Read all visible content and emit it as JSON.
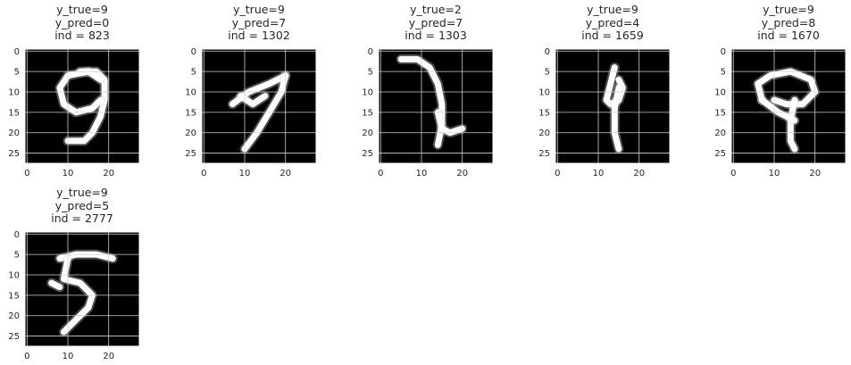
{
  "figure": {
    "panels": [
      {
        "title_lines": [
          "y_true=9",
          "y_pred=0",
          "ind = 823"
        ]
      },
      {
        "title_lines": [
          "y_true=9",
          "y_pred=7",
          "ind = 1302"
        ]
      },
      {
        "title_lines": [
          "y_true=2",
          "y_pred=7",
          "ind = 1303"
        ]
      },
      {
        "title_lines": [
          "y_true=9",
          "y_pred=4",
          "ind = 1659"
        ]
      },
      {
        "title_lines": [
          "y_true=9",
          "y_pred=8",
          "ind = 1670"
        ]
      },
      {
        "title_lines": [
          "y_true=9",
          "y_pred=5",
          "ind = 2777"
        ]
      }
    ]
  },
  "chart_data": [
    {
      "type": "image",
      "title": "y_true=9\ny_pred=0\nind = 823",
      "y_true": 9,
      "y_pred": 0,
      "ind": 823,
      "xlim": [
        -0.5,
        27.5
      ],
      "ylim": [
        27.5,
        -0.5
      ],
      "x_ticks": [
        0,
        10,
        20
      ],
      "y_ticks": [
        0,
        5,
        10,
        15,
        20,
        25
      ],
      "grid": true,
      "colormap": "gray",
      "strokes": [
        [
          [
            13,
            5
          ],
          [
            17,
            5
          ],
          [
            19,
            7
          ],
          [
            19,
            12
          ],
          [
            18,
            16
          ],
          [
            16,
            20
          ],
          [
            14,
            22
          ],
          [
            10,
            22
          ]
        ],
        [
          [
            18,
            7
          ],
          [
            15,
            5
          ],
          [
            10,
            6
          ],
          [
            8,
            9
          ],
          [
            9,
            13
          ],
          [
            12,
            15
          ],
          [
            16,
            14
          ],
          [
            18,
            12
          ]
        ]
      ]
    },
    {
      "type": "image",
      "title": "y_true=9\ny_pred=7\nind = 1302",
      "y_true": 9,
      "y_pred": 7,
      "ind": 1302,
      "xlim": [
        -0.5,
        27.5
      ],
      "ylim": [
        27.5,
        -0.5
      ],
      "x_ticks": [
        0,
        10,
        20
      ],
      "y_ticks": [
        0,
        5,
        10,
        15,
        20,
        25
      ],
      "grid": true,
      "colormap": "gray",
      "strokes": [
        [
          [
            7,
            13
          ],
          [
            11,
            10
          ],
          [
            16,
            8
          ],
          [
            20,
            6
          ]
        ],
        [
          [
            20,
            6
          ],
          [
            19,
            10
          ],
          [
            16,
            15
          ],
          [
            13,
            20
          ],
          [
            10,
            24
          ]
        ],
        [
          [
            9,
            11
          ],
          [
            12,
            13
          ],
          [
            15,
            11
          ]
        ]
      ]
    },
    {
      "type": "image",
      "title": "y_true=2\ny_pred=7\nind = 1303",
      "y_true": 2,
      "y_pred": 7,
      "ind": 1303,
      "xlim": [
        -0.5,
        27.5
      ],
      "ylim": [
        27.5,
        -0.5
      ],
      "x_ticks": [
        0,
        10,
        20
      ],
      "y_ticks": [
        0,
        5,
        10,
        15,
        20,
        25
      ],
      "grid": true,
      "colormap": "gray",
      "strokes": [
        [
          [
            5,
            2
          ],
          [
            9,
            2
          ],
          [
            12,
            4
          ],
          [
            14,
            8
          ],
          [
            15,
            13
          ],
          [
            15,
            18
          ],
          [
            14,
            23
          ]
        ],
        [
          [
            14,
            15
          ],
          [
            15,
            19
          ],
          [
            17,
            20
          ],
          [
            20,
            19
          ]
        ]
      ]
    },
    {
      "type": "image",
      "title": "y_true=9\ny_pred=4\nind = 1659",
      "y_true": 9,
      "y_pred": 4,
      "ind": 1659,
      "xlim": [
        -0.5,
        27.5
      ],
      "ylim": [
        27.5,
        -0.5
      ],
      "x_ticks": [
        0,
        10,
        20
      ],
      "y_ticks": [
        0,
        5,
        10,
        15,
        20,
        25
      ],
      "grid": true,
      "colormap": "gray",
      "strokes": [
        [
          [
            14,
            4
          ],
          [
            13,
            8
          ],
          [
            12,
            12
          ],
          [
            13,
            13
          ],
          [
            15,
            12
          ],
          [
            16,
            9
          ],
          [
            15,
            7
          ]
        ],
        [
          [
            15,
            9
          ],
          [
            14,
            14
          ],
          [
            14,
            20
          ],
          [
            15,
            24
          ]
        ]
      ]
    },
    {
      "type": "image",
      "title": "y_true=9\ny_pred=8\nind = 1670",
      "y_true": 9,
      "y_pred": 8,
      "ind": 1670,
      "xlim": [
        -0.5,
        27.5
      ],
      "ylim": [
        27.5,
        -0.5
      ],
      "x_ticks": [
        0,
        10,
        20
      ],
      "y_ticks": [
        0,
        5,
        10,
        15,
        20,
        25
      ],
      "grid": true,
      "colormap": "gray",
      "strokes": [
        [
          [
            7,
            12
          ],
          [
            6,
            8
          ],
          [
            9,
            6
          ],
          [
            14,
            5
          ],
          [
            19,
            7
          ],
          [
            20,
            10
          ],
          [
            17,
            13
          ],
          [
            13,
            13
          ],
          [
            10,
            12
          ]
        ],
        [
          [
            15,
            12
          ],
          [
            14,
            17
          ],
          [
            14,
            22
          ],
          [
            15,
            24
          ]
        ],
        [
          [
            7,
            12
          ],
          [
            11,
            15
          ],
          [
            15,
            17
          ]
        ]
      ]
    },
    {
      "type": "image",
      "title": "y_true=9\ny_pred=5\nind = 2777",
      "y_true": 9,
      "y_pred": 5,
      "ind": 2777,
      "xlim": [
        -0.5,
        27.5
      ],
      "ylim": [
        27.5,
        -0.5
      ],
      "x_ticks": [
        0,
        10,
        20
      ],
      "y_ticks": [
        0,
        5,
        10,
        15,
        20,
        25
      ],
      "grid": true,
      "colormap": "gray",
      "strokes": [
        [
          [
            8,
            6
          ],
          [
            12,
            5
          ],
          [
            17,
            5
          ],
          [
            21,
            6
          ]
        ],
        [
          [
            10,
            6
          ],
          [
            9,
            11
          ],
          [
            13,
            12
          ],
          [
            16,
            15
          ],
          [
            15,
            18
          ],
          [
            12,
            21
          ],
          [
            9,
            24
          ]
        ],
        [
          [
            6,
            12
          ],
          [
            8,
            13
          ]
        ]
      ]
    }
  ]
}
